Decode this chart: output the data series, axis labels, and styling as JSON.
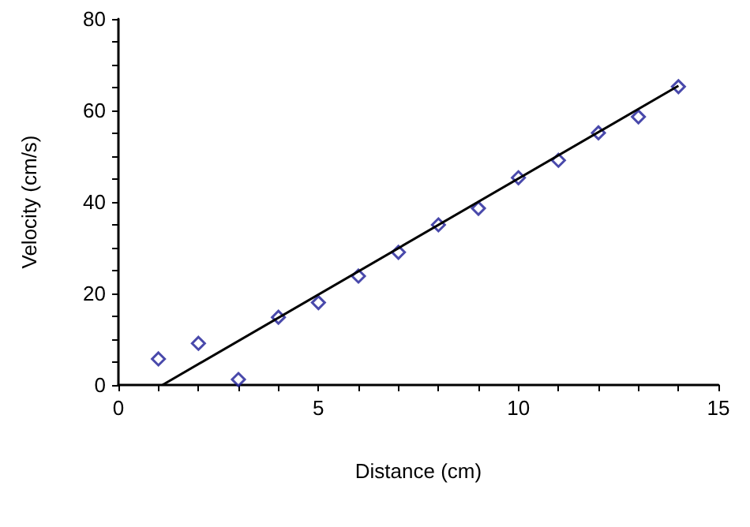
{
  "chart_data": {
    "type": "scatter",
    "xlabel": "Distance (cm)",
    "ylabel": "Velocity (cm/s)",
    "xlim": [
      0,
      15
    ],
    "ylim": [
      0,
      80
    ],
    "xticks": [
      0,
      {
        "value": 1,
        "label": null
      },
      {
        "value": 2,
        "label": null
      },
      {
        "value": 3,
        "label": null
      },
      {
        "value": 4,
        "label": null
      },
      5,
      {
        "value": 6,
        "label": null
      },
      {
        "value": 7,
        "label": null
      },
      {
        "value": 8,
        "label": null
      },
      {
        "value": 9,
        "label": null
      },
      10,
      {
        "value": 11,
        "label": null
      },
      {
        "value": 12,
        "label": null
      },
      {
        "value": 13,
        "label": null
      },
      {
        "value": 14,
        "label": null
      },
      15
    ],
    "yticks": [
      0,
      {
        "value": 5,
        "label": null
      },
      {
        "value": 10,
        "label": null
      },
      {
        "value": 15,
        "label": null
      },
      20,
      {
        "value": 25,
        "label": null
      },
      {
        "value": 30,
        "label": null
      },
      {
        "value": 35,
        "label": null
      },
      40,
      {
        "value": 45,
        "label": null
      },
      {
        "value": 50,
        "label": null
      },
      {
        "value": 55,
        "label": null
      },
      60,
      {
        "value": 65,
        "label": null
      },
      {
        "value": 70,
        "label": null
      },
      {
        "value": 75,
        "label": null
      },
      80
    ],
    "grid": false,
    "marker": "diamond",
    "series": [
      {
        "color": "#1c1c96",
        "x": [
          1,
          2,
          3,
          4,
          5,
          6,
          7,
          8,
          9,
          10,
          11,
          12,
          13,
          14
        ],
        "values": [
          5.7,
          9.1,
          1.2,
          14.8,
          18,
          23.8,
          29,
          35,
          38.6,
          45.3,
          49.1,
          55.1,
          58.6,
          65.2
        ]
      },
      {
        "type": "line",
        "color": "#000000",
        "x": [
          1.1,
          14
        ],
        "values": [
          0,
          65.4
        ],
        "marker": "none"
      }
    ]
  }
}
